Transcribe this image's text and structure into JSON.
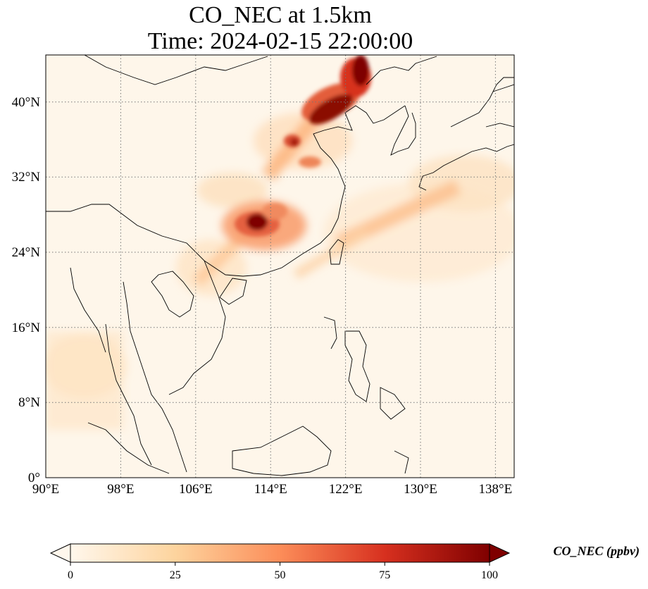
{
  "figure": {
    "title_line1": "CO_NEC at 1.5km",
    "title_line2": "Time: 2024-02-15 22:00:00"
  },
  "map": {
    "lon_range": [
      90,
      140
    ],
    "lat_range": [
      0,
      45
    ],
    "lat_ticks": [
      "0°",
      "8°N",
      "16°N",
      "24°N",
      "32°N",
      "40°N"
    ],
    "lon_ticks": [
      "90°E",
      "98°E",
      "106°E",
      "114°E",
      "122°E",
      "130°E",
      "138°E"
    ],
    "gridlines": "dotted"
  },
  "colorbar": {
    "label": "CO_NEC (ppbv)",
    "ticks": [
      "0",
      "25",
      "50",
      "75",
      "100"
    ],
    "range": [
      0,
      100
    ],
    "extend": "both",
    "colormap": "OrRd",
    "colors": [
      "#fff7ec",
      "#fdd49e",
      "#fc8d59",
      "#d7301f",
      "#7f0000"
    ]
  }
}
